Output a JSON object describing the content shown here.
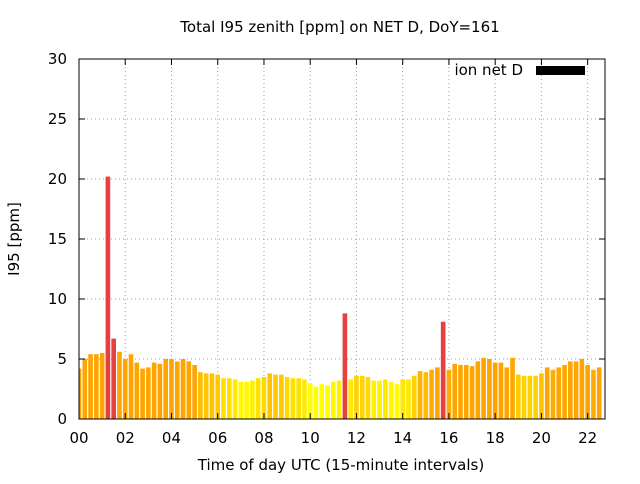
{
  "chart_data": {
    "type": "bar",
    "title": "Total I95 zenith [ppm] on NET D, DoY=161",
    "xlabel": "Time of day UTC (15-minute intervals)",
    "ylabel": "I95 [ppm]",
    "ylim": [
      0,
      30
    ],
    "xlim": [
      0,
      22.75
    ],
    "yticks": [
      "0",
      "5",
      "10",
      "15",
      "20",
      "25",
      "30"
    ],
    "xticks": [
      "00",
      "02",
      "04",
      "06",
      "08",
      "10",
      "12",
      "14",
      "16",
      "18",
      "20",
      "22"
    ],
    "grid": true,
    "legend": {
      "label": "ion net D",
      "color": "#000000",
      "position": "top-right"
    },
    "color_scale": {
      "low": "#ffff00",
      "mid": "#ffa500",
      "high": "#e64040"
    },
    "interval_hours": 0.25,
    "values": [
      4.2,
      5.0,
      5.4,
      5.4,
      5.5,
      20.2,
      6.7,
      5.6,
      5.0,
      5.4,
      4.7,
      4.2,
      4.3,
      4.7,
      4.6,
      5.0,
      5.0,
      4.8,
      5.0,
      4.8,
      4.5,
      3.9,
      3.8,
      3.8,
      3.7,
      3.4,
      3.4,
      3.3,
      3.1,
      3.1,
      3.2,
      3.4,
      3.5,
      3.8,
      3.7,
      3.7,
      3.5,
      3.4,
      3.4,
      3.3,
      3.0,
      2.7,
      2.9,
      2.8,
      3.1,
      3.2,
      8.8,
      3.3,
      3.6,
      3.6,
      3.5,
      3.2,
      3.2,
      3.3,
      3.1,
      2.9,
      3.3,
      3.3,
      3.6,
      4.0,
      3.9,
      4.1,
      4.3,
      8.1,
      4.1,
      4.6,
      4.5,
      4.5,
      4.4,
      4.8,
      5.1,
      5.0,
      4.7,
      4.7,
      4.3,
      5.1,
      3.7,
      3.6,
      3.6,
      3.6,
      3.8,
      4.3,
      4.1,
      4.3,
      4.5,
      4.8,
      4.8,
      5.0,
      4.5,
      4.1,
      4.3
    ]
  }
}
